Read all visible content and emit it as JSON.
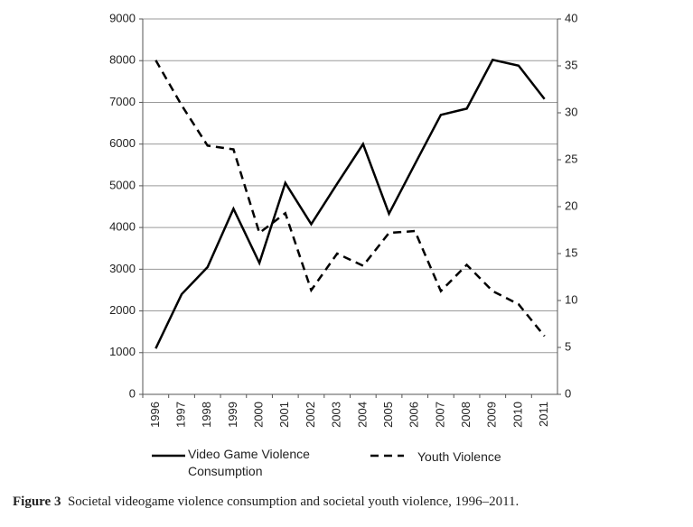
{
  "chart_data": {
    "type": "line",
    "categories": [
      "1996",
      "1997",
      "1998",
      "1999",
      "2000",
      "2001",
      "2002",
      "2003",
      "2004",
      "2005",
      "2006",
      "2007",
      "2008",
      "2009",
      "2010",
      "2011"
    ],
    "series": [
      {
        "name": "Video Game Violence Consumption",
        "color": "#000000",
        "dash": "solid",
        "values": [
          1100,
          2400,
          3050,
          4450,
          3150,
          5070,
          4080,
          5050,
          6000,
          4330,
          5520,
          6700,
          6850,
          8020,
          7880,
          7080
        ]
      },
      {
        "name": "Youth Violence",
        "color": "#000000",
        "dash": "dashed",
        "axis": "y2",
        "values": [
          35.6,
          30.8,
          26.5,
          26.1,
          17.2,
          19.3,
          11.1,
          15.0,
          13.7,
          17.2,
          17.4,
          11.0,
          13.8,
          11.0,
          9.6,
          6.2
        ]
      }
    ],
    "ylim": [
      0,
      9000
    ],
    "yticks": [
      0,
      1000,
      2000,
      3000,
      4000,
      5000,
      6000,
      7000,
      8000,
      9000
    ],
    "y2lim": [
      0,
      40
    ],
    "y2ticks": [
      0,
      5,
      10,
      15,
      20,
      25,
      30,
      35,
      40
    ],
    "grid": true
  },
  "caption": {
    "label": "Figure 3",
    "text": "Societal videogame violence consumption and societal youth violence, 1996–2011."
  }
}
